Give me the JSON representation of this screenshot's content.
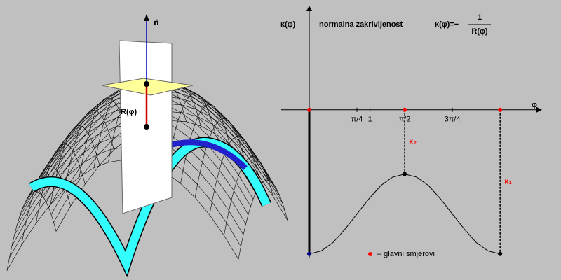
{
  "illustration": {
    "normal_label": "n⃗",
    "radius_label": "R(φ)"
  },
  "chart_data": {
    "type": "line",
    "title": "normalna zakrivljenost",
    "formula": {
      "lhs": "κ(φ)=−",
      "numerator": "1",
      "denominator": "R(φ)"
    },
    "y_label": "κ(φ)",
    "x_label": "φ",
    "x": [
      0,
      0.196,
      0.393,
      0.589,
      0.785,
      0.982,
      1.178,
      1.374,
      1.571,
      1.767,
      1.963,
      2.16,
      2.356,
      2.553,
      2.749,
      2.945,
      3.142
    ],
    "series": [
      {
        "color": "#000000",
        "values": [
          -2.38,
          -2.33,
          -2.19,
          -1.97,
          -1.72,
          -1.47,
          -1.25,
          -1.11,
          -1.06,
          -1.11,
          -1.25,
          -1.47,
          -1.72,
          -1.97,
          -2.19,
          -2.33,
          -2.38
        ]
      }
    ],
    "xlim": [
      0,
      3.74
    ],
    "ylim": [
      -2.44,
      1.65
    ],
    "xticks": [
      {
        "value": 0.785,
        "label": "π/4"
      },
      1,
      {
        "value": 1.571,
        "label": "π/2"
      },
      {
        "value": 2.356,
        "label": "3π/4"
      }
    ],
    "principal_labels": [
      {
        "label": "κ₂",
        "index": 8
      },
      {
        "label": "κ₁",
        "index": 16
      }
    ],
    "principal_indices": [
      0,
      8,
      16
    ],
    "legend": "–  glavni smjerovi",
    "principal_color": "#ff0000"
  }
}
